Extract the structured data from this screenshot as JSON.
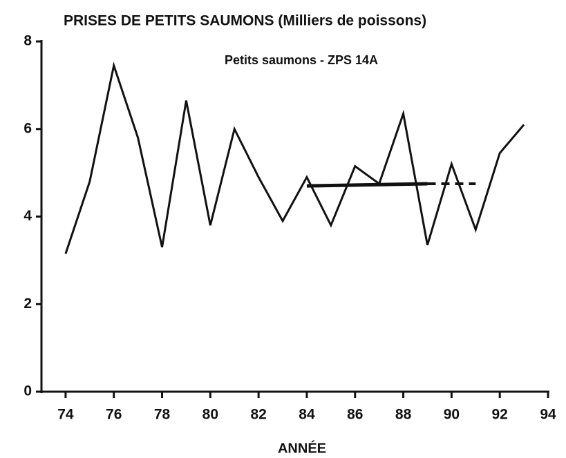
{
  "chart_data": {
    "type": "line",
    "title": "PRISES DE PETITS SAUMONS  (Milliers de poissons)",
    "annotation": "Petits saumons - ZPS 14A",
    "xlabel": "ANNÉE",
    "color": "#111111",
    "xlim": [
      73,
      94
    ],
    "ylim": [
      0,
      8
    ],
    "xticks": [
      74,
      76,
      78,
      80,
      82,
      84,
      86,
      88,
      90,
      92,
      94
    ],
    "yticks": [
      0,
      2,
      4,
      6,
      8
    ],
    "series": [
      {
        "x": [
          74,
          75,
          76,
          77,
          78,
          79,
          80,
          81,
          82,
          83,
          84,
          85,
          86,
          87,
          88,
          89,
          90,
          91,
          92,
          93
        ],
        "values": [
          3.15,
          4.8,
          7.45,
          5.8,
          3.3,
          6.65,
          3.8,
          6.0,
          4.9,
          3.9,
          4.9,
          3.8,
          5.15,
          4.75,
          6.35,
          3.35,
          5.2,
          3.7,
          5.45,
          6.1
        ],
        "color": "#111111",
        "style": "solid",
        "width": 3
      },
      {
        "x": [
          84,
          89
        ],
        "values": [
          4.7,
          4.75
        ],
        "color": "#111111",
        "style": "solid",
        "width": 5
      },
      {
        "x": [
          89,
          91
        ],
        "values": [
          4.75,
          4.75
        ],
        "color": "#111111",
        "style": "dashed",
        "width": 4
      }
    ]
  }
}
